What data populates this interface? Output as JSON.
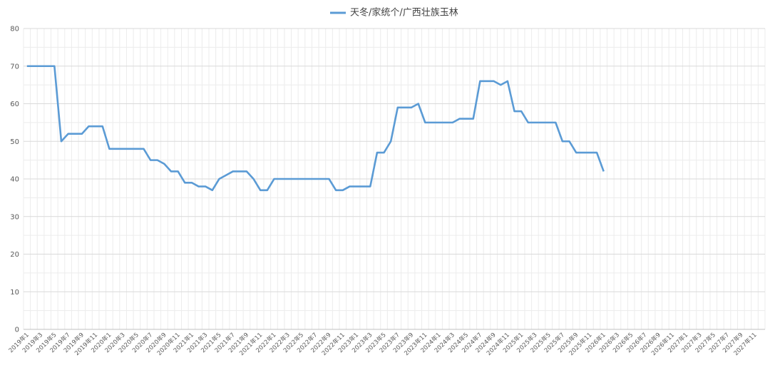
{
  "chart_data": {
    "type": "line",
    "categories": [
      "2019年1",
      null,
      "2019年3",
      null,
      "2019年5",
      null,
      "2019年7",
      null,
      "2019年9",
      null,
      "2019年11",
      null,
      "2020年1",
      null,
      "2020年3",
      null,
      "2020年5",
      null,
      "2020年7",
      null,
      "2020年9",
      null,
      "2020年11",
      null,
      "2021年1",
      null,
      "2021年3",
      null,
      "2021年5",
      null,
      "2021年7",
      null,
      "2021年9",
      null,
      "2021年11",
      null,
      "2022年1",
      null,
      "2022年3",
      null,
      "2022年5",
      null,
      "2022年7",
      null,
      "2022年9",
      null,
      "2022年11",
      null,
      "2023年1",
      null,
      "2023年3",
      null,
      "2023年5",
      null,
      "2023年7",
      null,
      "2023年9",
      null,
      "2023年11",
      null,
      "2024年1",
      null,
      "2024年3",
      null,
      "2024年5",
      null,
      "2024年7",
      null,
      "2024年9",
      null,
      "2024年11",
      null,
      "2025年1",
      null,
      "2025年3",
      null,
      "2025年5",
      null,
      "2025年7",
      null,
      "2025年9",
      null,
      "2025年11",
      null,
      "2026年1",
      null,
      "2026年3",
      null,
      "2026年5",
      null,
      "2026年7",
      null,
      "2026年9",
      null,
      "2026年11",
      null,
      "2027年1",
      null,
      "2027年3",
      null,
      "2027年5",
      null,
      "2027年7",
      null,
      "2027年9",
      null,
      "2027年11",
      null
    ],
    "series": [
      {
        "name": "天冬/家统个/广西壮族玉林",
        "color": "#5b9bd5",
        "values": [
          70,
          70,
          70,
          70,
          70,
          50,
          52,
          52,
          52,
          54,
          54,
          54,
          48,
          48,
          48,
          48,
          48,
          48,
          45,
          45,
          44,
          42,
          42,
          39,
          39,
          38,
          38,
          37,
          40,
          41,
          42,
          42,
          42,
          40,
          37,
          37,
          40,
          40,
          40,
          40,
          40,
          40,
          40,
          40,
          40,
          37,
          37,
          38,
          38,
          38,
          38,
          47,
          47,
          50,
          59,
          59,
          59,
          60,
          55,
          55,
          55,
          55,
          55,
          56,
          56,
          56,
          66,
          66,
          66,
          65,
          66,
          58,
          58,
          55,
          55,
          55,
          55,
          55,
          50,
          50,
          47,
          47,
          47,
          47,
          42,
          null,
          null,
          null,
          null,
          null,
          null,
          null,
          null,
          null,
          null,
          null,
          null,
          null,
          null,
          null,
          null,
          null,
          null,
          null,
          null,
          null,
          null,
          null
        ]
      }
    ],
    "ylim": [
      0,
      80
    ],
    "yticks": [
      0,
      10,
      20,
      30,
      40,
      50,
      60,
      70,
      80
    ],
    "grid": true,
    "legend": "top"
  }
}
